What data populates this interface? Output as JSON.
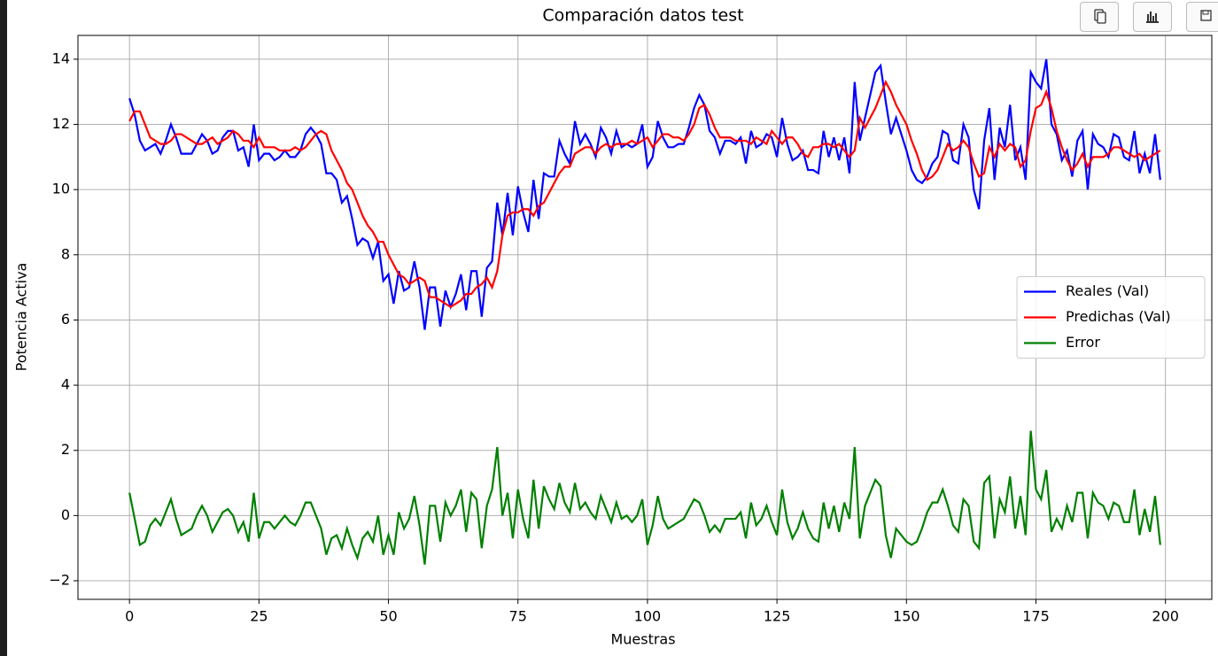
{
  "chart_data": {
    "type": "line",
    "title": "Comparación datos test",
    "xlabel": "Muestras",
    "ylabel": "Potencia Activa",
    "x": [
      0,
      1,
      2,
      3,
      4,
      5,
      6,
      7,
      8,
      9,
      10,
      11,
      12,
      13,
      14,
      15,
      16,
      17,
      18,
      19,
      20,
      21,
      22,
      23,
      24,
      25,
      26,
      27,
      28,
      29,
      30,
      31,
      32,
      33,
      34,
      35,
      36,
      37,
      38,
      39,
      40,
      41,
      42,
      43,
      44,
      45,
      46,
      47,
      48,
      49,
      50,
      51,
      52,
      53,
      54,
      55,
      56,
      57,
      58,
      59,
      60,
      61,
      62,
      63,
      64,
      65,
      66,
      67,
      68,
      69,
      70,
      71,
      72,
      73,
      74,
      75,
      76,
      77,
      78,
      79,
      80,
      81,
      82,
      83,
      84,
      85,
      86,
      87,
      88,
      89,
      90,
      91,
      92,
      93,
      94,
      95,
      96,
      97,
      98,
      99,
      100,
      101,
      102,
      103,
      104,
      105,
      106,
      107,
      108,
      109,
      110,
      111,
      112,
      113,
      114,
      115,
      116,
      117,
      118,
      119,
      120,
      121,
      122,
      123,
      124,
      125,
      126,
      127,
      128,
      129,
      130,
      131,
      132,
      133,
      134,
      135,
      136,
      137,
      138,
      139,
      140,
      141,
      142,
      143,
      144,
      145,
      146,
      147,
      148,
      149,
      150,
      151,
      152,
      153,
      154,
      155,
      156,
      157,
      158,
      159,
      160,
      161,
      162,
      163,
      164,
      165,
      166,
      167,
      168,
      169,
      170,
      171,
      172,
      173,
      174,
      175,
      176,
      177,
      178,
      179,
      180,
      181,
      182,
      183,
      184,
      185,
      186,
      187,
      188,
      189,
      190,
      191,
      192,
      193,
      194,
      195,
      196,
      197,
      198,
      199
    ],
    "series": [
      {
        "name": "Reales (Val)",
        "color": "#0000ff",
        "values": [
          12.8,
          12.3,
          11.5,
          11.2,
          11.3,
          11.4,
          11.1,
          11.5,
          12.0,
          11.6,
          11.1,
          11.1,
          11.1,
          11.4,
          11.7,
          11.5,
          11.1,
          11.2,
          11.6,
          11.8,
          11.8,
          11.2,
          11.3,
          10.7,
          12.0,
          10.9,
          11.1,
          11.1,
          10.9,
          11.0,
          11.2,
          11.0,
          11.0,
          11.2,
          11.7,
          11.9,
          11.7,
          11.4,
          10.5,
          10.5,
          10.3,
          9.6,
          9.8,
          9.1,
          8.3,
          8.5,
          8.4,
          7.9,
          8.4,
          7.2,
          7.4,
          6.5,
          7.5,
          6.9,
          7.0,
          7.8,
          7.0,
          5.7,
          7.0,
          7.0,
          5.8,
          6.9,
          6.4,
          6.8,
          7.4,
          6.3,
          7.5,
          7.5,
          6.1,
          7.6,
          7.8,
          9.6,
          8.6,
          9.9,
          8.6,
          10.1,
          9.3,
          8.7,
          10.3,
          9.1,
          10.5,
          10.4,
          10.4,
          11.5,
          11.1,
          10.8,
          12.1,
          11.4,
          11.7,
          11.4,
          11.0,
          11.9,
          11.6,
          11.1,
          11.8,
          11.3,
          11.4,
          11.3,
          11.4,
          12.0,
          10.7,
          11.0,
          12.1,
          11.6,
          11.3,
          11.3,
          11.4,
          11.4,
          11.9,
          12.5,
          12.9,
          12.6,
          11.8,
          11.6,
          11.1,
          11.5,
          11.5,
          11.4,
          11.6,
          10.8,
          11.8,
          11.3,
          11.4,
          11.7,
          11.6,
          11.0,
          12.2,
          11.4,
          10.9,
          11.0,
          11.2,
          10.6,
          10.6,
          10.5,
          11.8,
          11.0,
          11.6,
          10.9,
          11.6,
          10.5,
          13.3,
          11.5,
          12.2,
          12.9,
          13.6,
          13.8,
          12.7,
          11.7,
          12.2,
          11.7,
          11.2,
          10.6,
          10.3,
          10.2,
          10.4,
          10.8,
          11.0,
          11.8,
          11.7,
          10.9,
          10.8,
          12.0,
          11.6,
          10.0,
          9.4,
          11.5,
          12.5,
          10.3,
          11.9,
          11.3,
          12.6,
          10.9,
          11.3,
          10.3,
          13.6,
          13.3,
          13.1,
          14.0,
          12.0,
          11.7,
          10.9,
          11.2,
          10.4,
          11.5,
          11.8,
          10.0,
          11.7,
          11.4,
          11.3,
          11.0,
          11.7,
          11.6,
          11.0,
          10.9,
          11.8,
          10.5,
          11.1,
          10.5,
          11.7,
          10.3
        ]
      },
      {
        "name": "Predichas (Val)",
        "color": "#ff0000",
        "values": [
          12.1,
          12.4,
          12.4,
          12.0,
          11.6,
          11.5,
          11.4,
          11.4,
          11.5,
          11.7,
          11.7,
          11.6,
          11.5,
          11.4,
          11.4,
          11.5,
          11.6,
          11.4,
          11.5,
          11.6,
          11.8,
          11.7,
          11.5,
          11.5,
          11.3,
          11.6,
          11.3,
          11.3,
          11.3,
          11.2,
          11.2,
          11.2,
          11.3,
          11.2,
          11.3,
          11.5,
          11.7,
          11.8,
          11.7,
          11.2,
          10.9,
          10.6,
          10.2,
          10.0,
          9.6,
          9.2,
          8.9,
          8.7,
          8.4,
          8.4,
          8.0,
          7.7,
          7.4,
          7.3,
          7.1,
          7.2,
          7.3,
          7.2,
          6.7,
          6.7,
          6.6,
          6.5,
          6.4,
          6.5,
          6.6,
          6.8,
          6.8,
          7.0,
          7.1,
          7.3,
          7.0,
          7.5,
          8.6,
          9.2,
          9.3,
          9.3,
          9.4,
          9.4,
          9.2,
          9.5,
          9.6,
          9.9,
          10.2,
          10.5,
          10.7,
          10.7,
          11.1,
          11.2,
          11.3,
          11.3,
          11.1,
          11.3,
          11.4,
          11.3,
          11.4,
          11.4,
          11.4,
          11.5,
          11.4,
          11.5,
          11.6,
          11.3,
          11.5,
          11.7,
          11.7,
          11.6,
          11.6,
          11.5,
          11.7,
          12.0,
          12.5,
          12.6,
          12.3,
          11.9,
          11.6,
          11.6,
          11.6,
          11.5,
          11.5,
          11.5,
          11.4,
          11.6,
          11.5,
          11.4,
          11.8,
          11.6,
          11.4,
          11.6,
          11.6,
          11.4,
          11.1,
          11.0,
          11.3,
          11.3,
          11.4,
          11.4,
          11.3,
          11.4,
          11.2,
          11.0,
          11.2,
          12.2,
          11.9,
          12.2,
          12.5,
          12.9,
          13.3,
          13.0,
          12.6,
          12.3,
          12.0,
          11.5,
          11.1,
          10.6,
          10.3,
          10.4,
          10.6,
          11.0,
          11.4,
          11.2,
          11.3,
          11.5,
          11.3,
          10.8,
          10.4,
          10.5,
          11.3,
          11.0,
          11.4,
          11.2,
          11.4,
          11.3,
          10.7,
          10.9,
          11.8,
          12.5,
          12.6,
          13.0,
          12.5,
          11.8,
          11.3,
          10.9,
          10.6,
          10.8,
          11.1,
          10.7,
          11.0,
          11.0,
          11.0,
          11.1,
          11.3,
          11.3,
          11.2,
          11.1,
          11.0,
          11.1,
          10.9,
          11.0,
          11.1,
          11.2
        ]
      },
      {
        "name": "Error",
        "color": "#008000",
        "values": [
          0.7,
          -0.1,
          -0.9,
          -0.8,
          -0.3,
          -0.1,
          -0.3,
          0.1,
          0.5,
          -0.1,
          -0.6,
          -0.5,
          -0.4,
          0,
          0.3,
          0,
          -0.5,
          -0.2,
          0.1,
          0.2,
          0,
          -0.5,
          -0.2,
          -0.8,
          0.7,
          -0.7,
          -0.2,
          -0.2,
          -0.4,
          -0.2,
          0,
          -0.2,
          -0.3,
          0,
          0.4,
          0.4,
          0,
          -0.4,
          -1.2,
          -0.7,
          -0.6,
          -1.0,
          -0.4,
          -0.9,
          -1.3,
          -0.7,
          -0.5,
          -0.8,
          0,
          -1.2,
          -0.6,
          -1.2,
          0.1,
          -0.4,
          -0.1,
          0.6,
          -0.3,
          -1.5,
          0.3,
          0.3,
          -0.8,
          0.4,
          0,
          0.3,
          0.8,
          -0.5,
          0.7,
          0.5,
          -1.0,
          0.3,
          0.8,
          2.1,
          0,
          0.7,
          -0.7,
          0.8,
          -0.1,
          -0.7,
          1.1,
          -0.4,
          0.9,
          0.5,
          0.2,
          1.0,
          0.4,
          0.1,
          1.0,
          0.2,
          0.4,
          0.1,
          -0.1,
          0.6,
          0.2,
          -0.2,
          0.4,
          -0.1,
          0,
          -0.2,
          0,
          0.5,
          -0.9,
          -0.3,
          0.6,
          -0.1,
          -0.4,
          -0.3,
          -0.2,
          -0.1,
          0.2,
          0.5,
          0.4,
          0,
          -0.5,
          -0.3,
          -0.5,
          -0.1,
          -0.1,
          -0.1,
          0.1,
          -0.7,
          0.4,
          -0.3,
          -0.1,
          0.3,
          -0.2,
          -0.6,
          0.8,
          -0.2,
          -0.7,
          -0.4,
          0.1,
          -0.4,
          -0.7,
          -0.8,
          0.4,
          -0.4,
          0.3,
          -0.5,
          0.4,
          -0.1,
          2.1,
          -0.7,
          0.3,
          0.7,
          1.1,
          0.9,
          -0.6,
          -1.3,
          -0.4,
          -0.6,
          -0.8,
          -0.9,
          -0.8,
          -0.4,
          0.1,
          0.4,
          0.4,
          0.8,
          0.3,
          -0.3,
          -0.5,
          0.5,
          0.3,
          -0.8,
          -1.0,
          1.0,
          1.2,
          -0.7,
          0.5,
          0.1,
          1.2,
          -0.4,
          0.6,
          -0.6,
          2.6,
          0.8,
          0.5,
          1.4,
          -0.5,
          -0.1,
          -0.4,
          0.3,
          -0.2,
          0.7,
          0.7,
          -0.7,
          0.7,
          0.4,
          0.3,
          -0.1,
          0.4,
          0.3,
          -0.2,
          -0.2,
          0.8,
          -0.6,
          0.2,
          -0.5,
          0.6,
          -0.9
        ]
      }
    ],
    "xlim": [
      -9.95,
      208.95
    ],
    "ylim": [
      -2.57,
      14.73
    ],
    "xticks": [
      0,
      25,
      50,
      75,
      100,
      125,
      150,
      175,
      200
    ],
    "yticks": [
      {
        "value": -2,
        "label": "−2"
      },
      0,
      2,
      4,
      6,
      8,
      10,
      12,
      14
    ],
    "grid": true,
    "legend": "center right"
  }
}
